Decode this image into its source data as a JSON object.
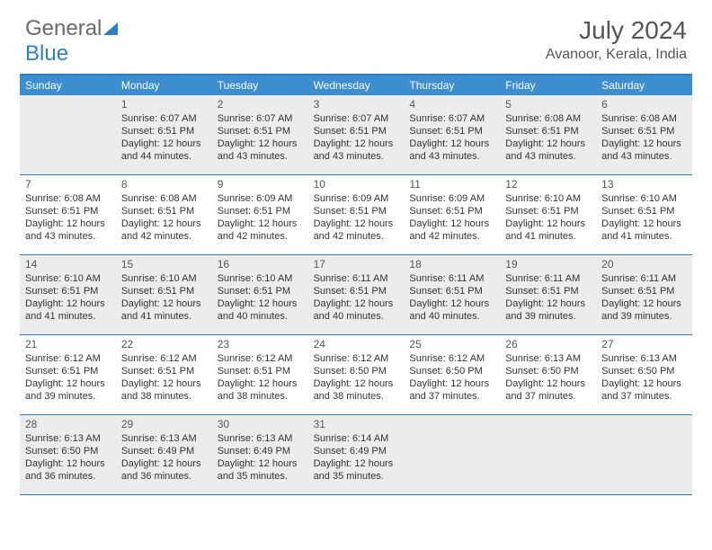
{
  "logo": {
    "part1": "General",
    "part2": "Blue"
  },
  "title": "July 2024",
  "location": "Avanoor, Kerala, India",
  "colors": {
    "header_bg": "#3d8ecf",
    "border": "#2f7fc3",
    "shade": "#ececec",
    "text": "#333333",
    "muted": "#555555",
    "logo_grey": "#6a6a6a"
  },
  "day_names": [
    "Sunday",
    "Monday",
    "Tuesday",
    "Wednesday",
    "Thursday",
    "Friday",
    "Saturday"
  ],
  "weeks": [
    [
      {
        "blank": true,
        "shaded": true
      },
      {
        "num": "1",
        "shaded": true,
        "sunrise": "Sunrise: 6:07 AM",
        "sunset": "Sunset: 6:51 PM",
        "day1": "Daylight: 12 hours",
        "day2": "and 44 minutes."
      },
      {
        "num": "2",
        "shaded": true,
        "sunrise": "Sunrise: 6:07 AM",
        "sunset": "Sunset: 6:51 PM",
        "day1": "Daylight: 12 hours",
        "day2": "and 43 minutes."
      },
      {
        "num": "3",
        "shaded": true,
        "sunrise": "Sunrise: 6:07 AM",
        "sunset": "Sunset: 6:51 PM",
        "day1": "Daylight: 12 hours",
        "day2": "and 43 minutes."
      },
      {
        "num": "4",
        "shaded": true,
        "sunrise": "Sunrise: 6:07 AM",
        "sunset": "Sunset: 6:51 PM",
        "day1": "Daylight: 12 hours",
        "day2": "and 43 minutes."
      },
      {
        "num": "5",
        "shaded": true,
        "sunrise": "Sunrise: 6:08 AM",
        "sunset": "Sunset: 6:51 PM",
        "day1": "Daylight: 12 hours",
        "day2": "and 43 minutes."
      },
      {
        "num": "6",
        "shaded": true,
        "sunrise": "Sunrise: 6:08 AM",
        "sunset": "Sunset: 6:51 PM",
        "day1": "Daylight: 12 hours",
        "day2": "and 43 minutes."
      }
    ],
    [
      {
        "num": "7",
        "sunrise": "Sunrise: 6:08 AM",
        "sunset": "Sunset: 6:51 PM",
        "day1": "Daylight: 12 hours",
        "day2": "and 43 minutes."
      },
      {
        "num": "8",
        "sunrise": "Sunrise: 6:08 AM",
        "sunset": "Sunset: 6:51 PM",
        "day1": "Daylight: 12 hours",
        "day2": "and 42 minutes."
      },
      {
        "num": "9",
        "sunrise": "Sunrise: 6:09 AM",
        "sunset": "Sunset: 6:51 PM",
        "day1": "Daylight: 12 hours",
        "day2": "and 42 minutes."
      },
      {
        "num": "10",
        "sunrise": "Sunrise: 6:09 AM",
        "sunset": "Sunset: 6:51 PM",
        "day1": "Daylight: 12 hours",
        "day2": "and 42 minutes."
      },
      {
        "num": "11",
        "sunrise": "Sunrise: 6:09 AM",
        "sunset": "Sunset: 6:51 PM",
        "day1": "Daylight: 12 hours",
        "day2": "and 42 minutes."
      },
      {
        "num": "12",
        "sunrise": "Sunrise: 6:10 AM",
        "sunset": "Sunset: 6:51 PM",
        "day1": "Daylight: 12 hours",
        "day2": "and 41 minutes."
      },
      {
        "num": "13",
        "sunrise": "Sunrise: 6:10 AM",
        "sunset": "Sunset: 6:51 PM",
        "day1": "Daylight: 12 hours",
        "day2": "and 41 minutes."
      }
    ],
    [
      {
        "num": "14",
        "shaded": true,
        "sunrise": "Sunrise: 6:10 AM",
        "sunset": "Sunset: 6:51 PM",
        "day1": "Daylight: 12 hours",
        "day2": "and 41 minutes."
      },
      {
        "num": "15",
        "shaded": true,
        "sunrise": "Sunrise: 6:10 AM",
        "sunset": "Sunset: 6:51 PM",
        "day1": "Daylight: 12 hours",
        "day2": "and 41 minutes."
      },
      {
        "num": "16",
        "shaded": true,
        "sunrise": "Sunrise: 6:10 AM",
        "sunset": "Sunset: 6:51 PM",
        "day1": "Daylight: 12 hours",
        "day2": "and 40 minutes."
      },
      {
        "num": "17",
        "shaded": true,
        "sunrise": "Sunrise: 6:11 AM",
        "sunset": "Sunset: 6:51 PM",
        "day1": "Daylight: 12 hours",
        "day2": "and 40 minutes."
      },
      {
        "num": "18",
        "shaded": true,
        "sunrise": "Sunrise: 6:11 AM",
        "sunset": "Sunset: 6:51 PM",
        "day1": "Daylight: 12 hours",
        "day2": "and 40 minutes."
      },
      {
        "num": "19",
        "shaded": true,
        "sunrise": "Sunrise: 6:11 AM",
        "sunset": "Sunset: 6:51 PM",
        "day1": "Daylight: 12 hours",
        "day2": "and 39 minutes."
      },
      {
        "num": "20",
        "shaded": true,
        "sunrise": "Sunrise: 6:11 AM",
        "sunset": "Sunset: 6:51 PM",
        "day1": "Daylight: 12 hours",
        "day2": "and 39 minutes."
      }
    ],
    [
      {
        "num": "21",
        "sunrise": "Sunrise: 6:12 AM",
        "sunset": "Sunset: 6:51 PM",
        "day1": "Daylight: 12 hours",
        "day2": "and 39 minutes."
      },
      {
        "num": "22",
        "sunrise": "Sunrise: 6:12 AM",
        "sunset": "Sunset: 6:51 PM",
        "day1": "Daylight: 12 hours",
        "day2": "and 38 minutes."
      },
      {
        "num": "23",
        "sunrise": "Sunrise: 6:12 AM",
        "sunset": "Sunset: 6:51 PM",
        "day1": "Daylight: 12 hours",
        "day2": "and 38 minutes."
      },
      {
        "num": "24",
        "sunrise": "Sunrise: 6:12 AM",
        "sunset": "Sunset: 6:50 PM",
        "day1": "Daylight: 12 hours",
        "day2": "and 38 minutes."
      },
      {
        "num": "25",
        "sunrise": "Sunrise: 6:12 AM",
        "sunset": "Sunset: 6:50 PM",
        "day1": "Daylight: 12 hours",
        "day2": "and 37 minutes."
      },
      {
        "num": "26",
        "sunrise": "Sunrise: 6:13 AM",
        "sunset": "Sunset: 6:50 PM",
        "day1": "Daylight: 12 hours",
        "day2": "and 37 minutes."
      },
      {
        "num": "27",
        "sunrise": "Sunrise: 6:13 AM",
        "sunset": "Sunset: 6:50 PM",
        "day1": "Daylight: 12 hours",
        "day2": "and 37 minutes."
      }
    ],
    [
      {
        "num": "28",
        "shaded": true,
        "sunrise": "Sunrise: 6:13 AM",
        "sunset": "Sunset: 6:50 PM",
        "day1": "Daylight: 12 hours",
        "day2": "and 36 minutes."
      },
      {
        "num": "29",
        "shaded": true,
        "sunrise": "Sunrise: 6:13 AM",
        "sunset": "Sunset: 6:49 PM",
        "day1": "Daylight: 12 hours",
        "day2": "and 36 minutes."
      },
      {
        "num": "30",
        "shaded": true,
        "sunrise": "Sunrise: 6:13 AM",
        "sunset": "Sunset: 6:49 PM",
        "day1": "Daylight: 12 hours",
        "day2": "and 35 minutes."
      },
      {
        "num": "31",
        "shaded": true,
        "sunrise": "Sunrise: 6:14 AM",
        "sunset": "Sunset: 6:49 PM",
        "day1": "Daylight: 12 hours",
        "day2": "and 35 minutes."
      },
      {
        "blank": true,
        "shaded": true
      },
      {
        "blank": true,
        "shaded": true
      },
      {
        "blank": true,
        "shaded": true
      }
    ]
  ]
}
